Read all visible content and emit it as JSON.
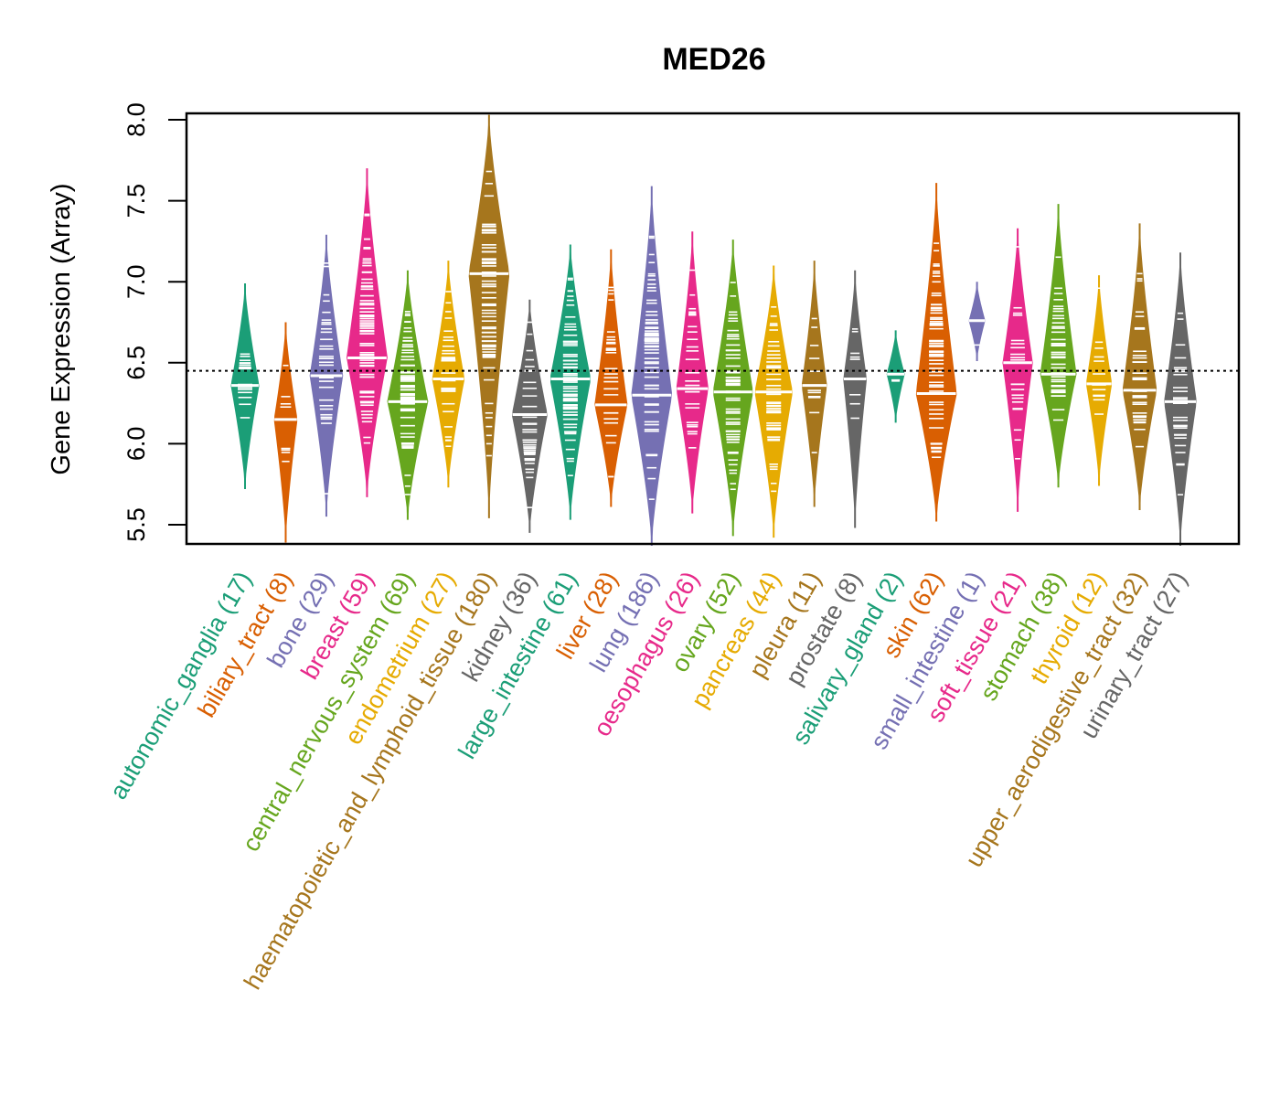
{
  "chart_data": {
    "type": "violin",
    "title": "MED26",
    "xlabel": "",
    "ylabel": "Gene Expression (Array)",
    "ylim": [
      5.38,
      8.04
    ],
    "yticks": [
      5.5,
      6.0,
      6.5,
      7.0,
      7.5,
      8.0
    ],
    "ytick_labels": [
      "5.5",
      "6.0",
      "6.5",
      "7.0",
      "7.5",
      "8.0"
    ],
    "reference_line": {
      "value": 6.45,
      "style": "dotted"
    },
    "grid": false,
    "legend": "none",
    "categories": [
      {
        "name": "autonomic_ganglia",
        "n": 17,
        "label": "autonomic_ganglia (17)",
        "color": "#1B9E77",
        "min": 5.72,
        "median": 6.36,
        "max": 6.99
      },
      {
        "name": "biliary_tract",
        "n": 8,
        "label": "biliary_tract (8)",
        "color": "#D95F02",
        "min": 5.39,
        "median": 6.15,
        "max": 6.75
      },
      {
        "name": "bone",
        "n": 29,
        "label": "bone (29)",
        "color": "#7570B3",
        "min": 5.55,
        "median": 6.42,
        "max": 7.29
      },
      {
        "name": "breast",
        "n": 59,
        "label": "breast (59)",
        "color": "#E7298A",
        "min": 5.67,
        "median": 6.53,
        "max": 7.7
      },
      {
        "name": "central_nervous_system",
        "n": 69,
        "label": "central_nervous_system (69)",
        "color": "#66A61E",
        "min": 5.53,
        "median": 6.26,
        "max": 7.07
      },
      {
        "name": "endometrium",
        "n": 27,
        "label": "endometrium (27)",
        "color": "#E6AB02",
        "min": 5.73,
        "median": 6.4,
        "max": 7.13
      },
      {
        "name": "haematopoietic_and_lymphoid_tissue",
        "n": 180,
        "label": "haematopoietic_and_lymphoid_tissue (180)",
        "color": "#A6761D",
        "min": 5.54,
        "median": 7.05,
        "max": 8.03
      },
      {
        "name": "kidney",
        "n": 36,
        "label": "kidney (36)",
        "color": "#666666",
        "min": 5.45,
        "median": 6.18,
        "max": 6.89
      },
      {
        "name": "large_intestine",
        "n": 61,
        "label": "large_intestine (61)",
        "color": "#1B9E77",
        "min": 5.53,
        "median": 6.4,
        "max": 7.23
      },
      {
        "name": "liver",
        "n": 28,
        "label": "liver (28)",
        "color": "#D95F02",
        "min": 5.61,
        "median": 6.24,
        "max": 7.2
      },
      {
        "name": "lung",
        "n": 186,
        "label": "lung (186)",
        "color": "#7570B3",
        "min": 5.37,
        "median": 6.3,
        "max": 7.59
      },
      {
        "name": "oesophagus",
        "n": 26,
        "label": "oesophagus (26)",
        "color": "#E7298A",
        "min": 5.57,
        "median": 6.34,
        "max": 7.31
      },
      {
        "name": "ovary",
        "n": 52,
        "label": "ovary (52)",
        "color": "#66A61E",
        "min": 5.43,
        "median": 6.32,
        "max": 7.26
      },
      {
        "name": "pancreas",
        "n": 44,
        "label": "pancreas (44)",
        "color": "#E6AB02",
        "min": 5.42,
        "median": 6.32,
        "max": 7.1
      },
      {
        "name": "pleura",
        "n": 11,
        "label": "pleura (11)",
        "color": "#A6761D",
        "min": 5.61,
        "median": 6.36,
        "max": 7.13
      },
      {
        "name": "prostate",
        "n": 8,
        "label": "prostate (8)",
        "color": "#666666",
        "min": 5.48,
        "median": 6.4,
        "max": 7.07
      },
      {
        "name": "salivary_gland",
        "n": 2,
        "label": "salivary_gland (2)",
        "color": "#1B9E77",
        "min": 6.13,
        "median": 6.43,
        "max": 6.7
      },
      {
        "name": "skin",
        "n": 62,
        "label": "skin (62)",
        "color": "#D95F02",
        "min": 5.52,
        "median": 6.31,
        "max": 7.61
      },
      {
        "name": "small_intestine",
        "n": 1,
        "label": "small_intestine (1)",
        "color": "#7570B3",
        "min": 6.51,
        "median": 6.76,
        "max": 7.0
      },
      {
        "name": "soft_tissue",
        "n": 21,
        "label": "soft_tissue (21)",
        "color": "#E7298A",
        "min": 5.58,
        "median": 6.5,
        "max": 7.33
      },
      {
        "name": "stomach",
        "n": 38,
        "label": "stomach (38)",
        "color": "#66A61E",
        "min": 5.73,
        "median": 6.43,
        "max": 7.48
      },
      {
        "name": "thyroid",
        "n": 12,
        "label": "thyroid (12)",
        "color": "#E6AB02",
        "min": 5.74,
        "median": 6.37,
        "max": 7.04
      },
      {
        "name": "upper_aerodigestive_tract",
        "n": 32,
        "label": "upper_aerodigestive_tract (32)",
        "color": "#A6761D",
        "min": 5.59,
        "median": 6.33,
        "max": 7.36
      },
      {
        "name": "urinary_tract",
        "n": 27,
        "label": "urinary_tract (27)",
        "color": "#666666",
        "min": 5.37,
        "median": 6.26,
        "max": 7.18
      }
    ]
  }
}
